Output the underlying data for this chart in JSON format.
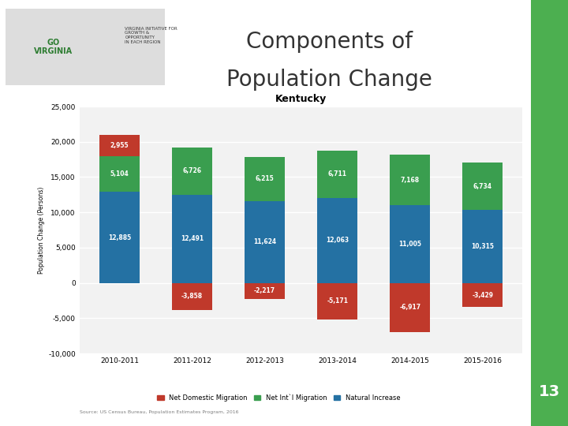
{
  "title": "Kentucky",
  "slide_title_line1": "Components of",
  "slide_title_line2": "Population Change",
  "categories": [
    "2010-2011",
    "2011-2012",
    "2012-2013",
    "2013-2014",
    "2014-2015",
    "2015-2016"
  ],
  "net_domestic_migration": [
    2955,
    -3858,
    -2217,
    -5171,
    -6917,
    -3429
  ],
  "net_intl_migration": [
    5104,
    6726,
    6215,
    6711,
    7168,
    6734
  ],
  "natural_increase": [
    12885,
    12491,
    11624,
    12063,
    11005,
    10315
  ],
  "color_domestic": "#c0392b",
  "color_intl": "#3a9e4f",
  "color_natural": "#2471a3",
  "ylim_min": -10000,
  "ylim_max": 25000,
  "yticks": [
    -10000,
    -5000,
    0,
    5000,
    10000,
    15000,
    20000,
    25000
  ],
  "ylabel": "Population Change (Persons)",
  "legend_labels": [
    "Net Domestic Migration",
    "Net Int`l Migration",
    "Natural Increase"
  ],
  "source_text": "Source: US Census Bureau, Population Estimates Program, 2016",
  "chart_bg": "#f2f2f2",
  "slide_bg": "#ffffff",
  "header_bg": "#ffffff",
  "green_sidebar": "#4caf50",
  "page_number": "13",
  "bar_width": 0.55
}
